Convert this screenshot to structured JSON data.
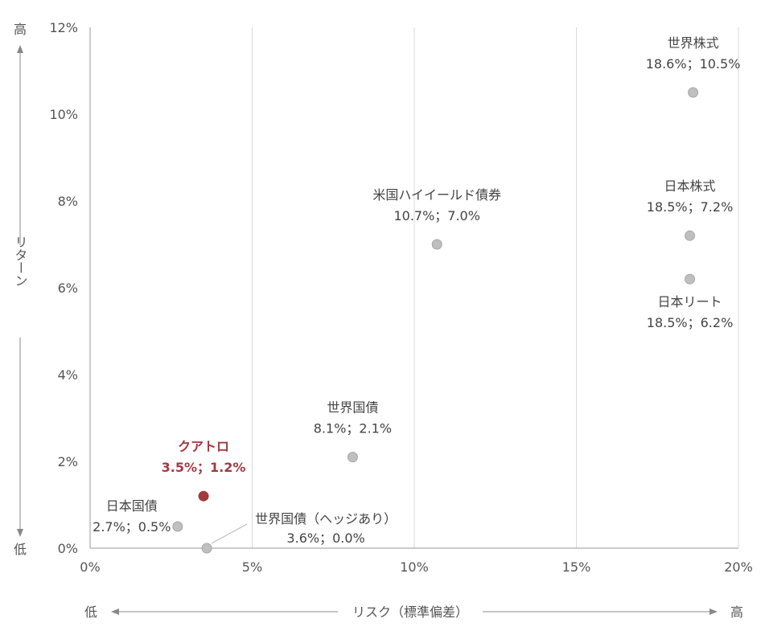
{
  "chart_data": {
    "type": "scatter",
    "xlabel": "リスク（標準偏差）",
    "ylabel": "リターン",
    "x_low": "低",
    "x_high": "高",
    "y_low": "低",
    "y_high": "高",
    "xlim": [
      0,
      20
    ],
    "ylim": [
      0,
      12
    ],
    "x_ticks": [
      "0%",
      "5%",
      "10%",
      "15%",
      "20%"
    ],
    "y_ticks": [
      "0%",
      "2%",
      "4%",
      "6%",
      "8%",
      "10%",
      "12%"
    ],
    "grid": "vertical",
    "colors": {
      "point": "#bfbfbf",
      "highlight": "#a23a3f",
      "axis": "#999999"
    },
    "points": [
      {
        "name": "世界株式",
        "value": "18.6%；10.5%",
        "x": 18.6,
        "y": 10.5,
        "label_pos": "above"
      },
      {
        "name": "米国ハイイールド債券",
        "value": "10.7%；7.0%",
        "x": 10.7,
        "y": 7.0,
        "label_pos": "above"
      },
      {
        "name": "日本株式",
        "value": "18.5%；7.2%",
        "x": 18.5,
        "y": 7.2,
        "label_pos": "above"
      },
      {
        "name": "日本リート",
        "value": "18.5%；6.2%",
        "x": 18.5,
        "y": 6.2,
        "label_pos": "below"
      },
      {
        "name": "世界国債",
        "value": "8.1%；2.1%",
        "x": 8.1,
        "y": 2.1,
        "label_pos": "above"
      },
      {
        "name": "クアトロ",
        "value": "3.5%；1.2%",
        "x": 3.5,
        "y": 1.2,
        "label_pos": "above",
        "highlight": true
      },
      {
        "name": "日本国債",
        "value": "2.7%；0.5%",
        "x": 2.7,
        "y": 0.5,
        "label_pos": "left"
      },
      {
        "name": "世界国債（ヘッジあり）",
        "value": "3.6%；0.0%",
        "x": 3.6,
        "y": 0.0,
        "label_pos": "callout"
      }
    ]
  }
}
